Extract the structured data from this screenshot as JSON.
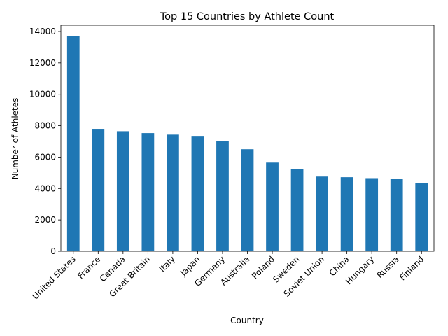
{
  "chart_data": {
    "type": "bar",
    "title": "Top 15 Countries by Athlete Count",
    "xlabel": "Country",
    "ylabel": "Number of Athletes",
    "categories": [
      "United States",
      "France",
      "Canada",
      "Great Britain",
      "Italy",
      "Japan",
      "Germany",
      "Australia",
      "Poland",
      "Sweden",
      "Soviet Union",
      "China",
      "Hungary",
      "Russia",
      "Finland"
    ],
    "values": [
      13700,
      7800,
      7650,
      7530,
      7430,
      7350,
      7000,
      6500,
      5650,
      5230,
      4760,
      4720,
      4660,
      4610,
      4360
    ],
    "ylim": [
      0,
      14400
    ],
    "yticks": [
      0,
      2000,
      4000,
      6000,
      8000,
      10000,
      12000,
      14000
    ],
    "bar_color": "#1f77b4",
    "grid": false,
    "legend": "none"
  }
}
